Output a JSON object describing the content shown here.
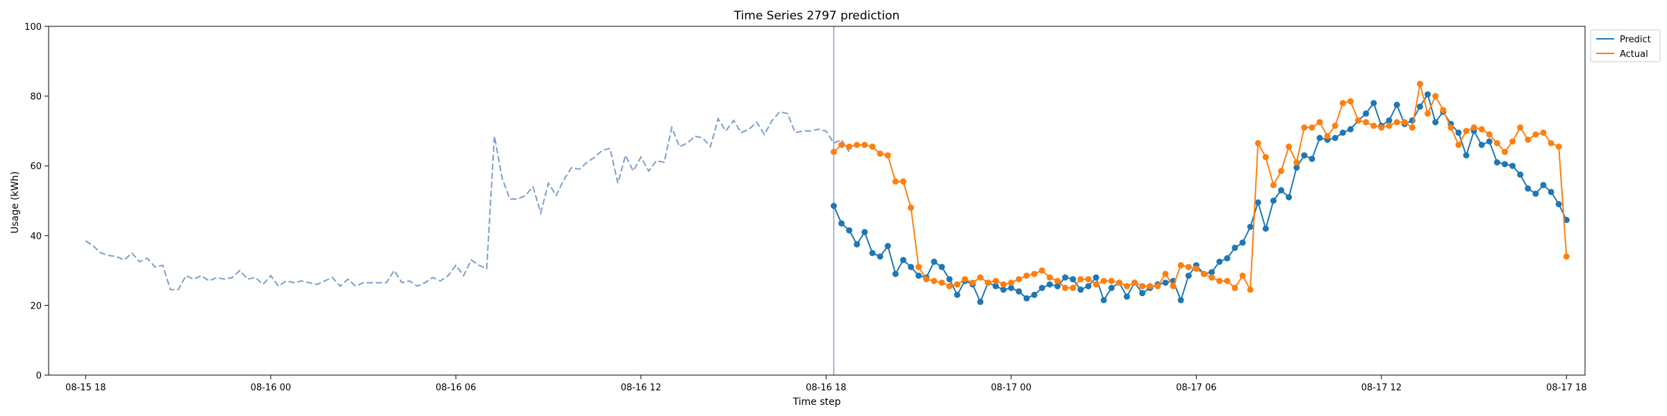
{
  "chart_data": {
    "type": "line",
    "title": "Time Series 2797 prediction",
    "xlabel": "Time step",
    "ylabel": "Usage (kWh)",
    "ylim": [
      0,
      100
    ],
    "yticks": [
      0,
      20,
      40,
      60,
      80,
      100
    ],
    "xlim_hours": [
      -1.2,
      48.6
    ],
    "xticks": [
      {
        "label": "08-15 18",
        "hour": 0
      },
      {
        "label": "08-16 00",
        "hour": 6
      },
      {
        "label": "08-16 06",
        "hour": 12
      },
      {
        "label": "08-16 12",
        "hour": 18
      },
      {
        "label": "08-16 18",
        "hour": 24
      },
      {
        "label": "08-17 00",
        "hour": 30
      },
      {
        "label": "08-17 06",
        "hour": 36
      },
      {
        "label": "08-17 12",
        "hour": 42
      },
      {
        "label": "08-17 18",
        "hour": 48
      }
    ],
    "step_hours": 0.25,
    "forecast_start_hour": 24.25,
    "legend_position": "top-right",
    "colors": {
      "history": "#7d9ec7",
      "predict": "#1f77b4",
      "actual": "#ff7f0e",
      "divider": "#7f9fd0"
    },
    "history": {
      "start_hour": 0,
      "values": [
        38.5,
        37,
        35,
        34.3,
        34,
        33,
        35,
        32.5,
        33.5,
        31,
        31.5,
        24.5,
        24.5,
        28.5,
        27.5,
        28.5,
        27,
        28,
        27.5,
        28,
        30,
        27.5,
        28,
        26,
        28.5,
        25.5,
        27,
        26.5,
        27,
        26.5,
        26,
        27,
        28,
        25.5,
        27.5,
        25.5,
        26.5,
        26.5,
        26.5,
        26.5,
        30,
        26.5,
        27,
        25.5,
        26.5,
        28,
        27,
        28.5,
        31.5,
        28.5,
        33,
        31.5,
        30.5,
        68.5,
        56.5,
        50.5,
        50.5,
        51.5,
        54,
        46.5,
        55,
        51.5,
        56,
        59.5,
        59,
        61,
        62.5,
        64.5,
        65,
        55,
        63,
        58.5,
        62.5,
        58.5,
        61.5,
        61,
        71,
        65.5,
        66.5,
        68.5,
        68,
        65.5,
        73.5,
        70,
        73,
        69.5,
        70.5,
        72.5,
        69,
        73,
        75.5,
        75,
        69.5,
        70,
        70,
        70.5,
        70,
        66.5,
        67.5,
        64
      ]
    },
    "series": [
      {
        "name": "Predict",
        "start_hour": 24.25,
        "values": [
          48.5,
          43.5,
          41.5,
          37.5,
          41,
          35,
          34,
          37,
          29,
          33,
          31,
          28.5,
          28,
          32.5,
          31,
          27.5,
          23,
          27,
          26,
          21,
          26.5,
          25.5,
          24.5,
          25,
          24,
          22,
          23,
          25,
          26,
          25.5,
          28,
          27.5,
          24.5,
          25.5,
          28,
          21.5,
          25,
          26.5,
          22.5,
          26.5,
          23.5,
          25,
          26,
          26.5,
          27,
          21.5,
          28.5,
          31.5,
          29,
          29.5,
          32.5,
          33.5,
          36.5,
          38,
          42.5,
          49.5,
          42,
          50,
          53,
          51,
          59.5,
          63,
          62,
          68,
          67.5,
          68,
          69.5,
          70.5,
          73,
          75,
          78,
          71.5,
          73,
          77.5,
          72,
          73,
          77,
          80.5,
          72.5,
          75.5,
          72,
          69.5,
          63,
          70,
          66,
          67,
          61,
          60.5,
          60,
          57.5,
          53.5,
          52,
          54.5,
          52.5,
          49,
          44.5
        ]
      },
      {
        "name": "Actual",
        "start_hour": 24.25,
        "values": [
          64,
          66,
          65.5,
          66,
          66,
          65.5,
          63.5,
          63,
          55.5,
          55.5,
          48,
          31,
          27.5,
          27,
          26.5,
          25.5,
          26,
          27.5,
          26.5,
          28,
          26.5,
          27,
          26,
          26.5,
          27.5,
          28.5,
          29,
          30,
          28,
          27,
          25,
          25,
          27.5,
          27.5,
          26,
          27,
          27,
          26.5,
          25.5,
          26.5,
          25.5,
          25.5,
          25.5,
          29,
          25.5,
          31.5,
          31,
          30.5,
          29,
          28,
          27,
          27,
          25,
          28.5,
          24.5,
          66.5,
          62.5,
          54.5,
          58.5,
          65.5,
          61,
          71,
          71,
          72.5,
          68.5,
          71.5,
          78,
          78.5,
          73,
          72.5,
          71.5,
          71,
          71.5,
          72.5,
          72.5,
          71,
          83.5,
          75,
          80,
          76,
          71,
          66,
          70,
          71,
          70.5,
          69,
          66.5,
          64,
          67,
          71,
          67.5,
          69,
          69.5,
          66.5,
          65.5,
          34
        ]
      }
    ]
  }
}
